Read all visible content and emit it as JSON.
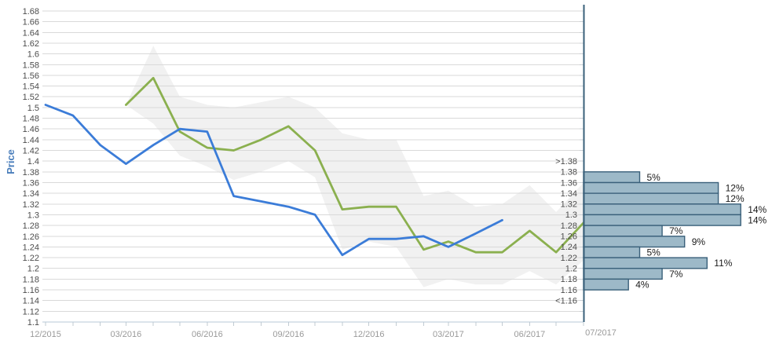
{
  "colors": {
    "history_line": "#3B7CD8",
    "forecast_line": "#8BB04F",
    "band": "#F1F1F1",
    "grid": "#D9D9D9",
    "axis_line": "#B7C9D7",
    "axis_tick": "#C2CBD2",
    "hist_bar_fill": "#9DB9C8",
    "hist_bar_border": "#3A607A",
    "hist_axis": "#3A607A",
    "hist_tick": "#C9CFD4",
    "y_label": "#4D4D4D",
    "x_label": "#9A9A9A",
    "bin_label": "#4D4D4D",
    "pct_label": "#1A1A1A",
    "price_label": "#4A7EBB"
  },
  "y_axis": {
    "title": "Price",
    "ticks": [
      "1.68",
      "1.66",
      "1.64",
      "1.62",
      "1.6",
      "1.58",
      "1.56",
      "1.54",
      "1.52",
      "1.5",
      "1.48",
      "1.46",
      "1.44",
      "1.42",
      "1.4",
      "1.38",
      "1.36",
      "1.34",
      "1.32",
      "1.3",
      "1.28",
      "1.26",
      "1.24",
      "1.22",
      "1.2",
      "1.18",
      "1.16",
      "1.14",
      "1.12",
      "1.1"
    ]
  },
  "x_axis": {
    "tick_labels": [
      "12/2015",
      "03/2016",
      "06/2016",
      "09/2016",
      "12/2016",
      "03/2017",
      "06/2017"
    ],
    "forecast_label": "07/2017"
  },
  "chart_data": {
    "type": "line",
    "title": "",
    "xlabel": "",
    "ylabel": "Price",
    "ylim": [
      1.1,
      1.68
    ],
    "grid": "horizontal",
    "series": [
      {
        "name": "history",
        "color": "#3B7CD8",
        "x": [
          "2015-12",
          "2016-01",
          "2016-02",
          "2016-03",
          "2016-04",
          "2016-05",
          "2016-06",
          "2016-07",
          "2016-08",
          "2016-09",
          "2016-10",
          "2016-11",
          "2016-12",
          "2017-01",
          "2017-02",
          "2017-03",
          "2017-04",
          "2017-05"
        ],
        "values": [
          1.505,
          1.485,
          1.43,
          1.395,
          1.43,
          1.46,
          1.455,
          1.335,
          1.325,
          1.315,
          1.3,
          1.225,
          1.255,
          1.255,
          1.26,
          1.24,
          1.265,
          1.29
        ]
      },
      {
        "name": "forecast",
        "color": "#8BB04F",
        "x": [
          "2016-03",
          "2016-04",
          "2016-05",
          "2016-06",
          "2016-07",
          "2016-08",
          "2016-09",
          "2016-10",
          "2016-11",
          "2016-12",
          "2017-01",
          "2017-02",
          "2017-03",
          "2017-04",
          "2017-05",
          "2017-06",
          "2017-07",
          "2017-08"
        ],
        "values": [
          1.505,
          1.555,
          1.455,
          1.425,
          1.42,
          1.44,
          1.465,
          1.42,
          1.31,
          1.315,
          1.315,
          1.235,
          1.25,
          1.23,
          1.23,
          1.27,
          1.23,
          1.285
        ]
      },
      {
        "name": "confidence_band",
        "color": "#F1F1F1",
        "x": [
          "2016-03",
          "2016-04",
          "2016-05",
          "2016-06",
          "2016-07",
          "2016-08",
          "2016-09",
          "2016-10",
          "2016-11",
          "2016-12",
          "2017-01",
          "2017-02",
          "2017-03",
          "2017-04",
          "2017-05",
          "2017-06",
          "2017-07",
          "2017-08"
        ],
        "upper": [
          1.505,
          1.615,
          1.52,
          1.505,
          1.5,
          1.51,
          1.52,
          1.5,
          1.452,
          1.44,
          1.44,
          1.335,
          1.345,
          1.315,
          1.32,
          1.355,
          1.305,
          1.36
        ],
        "lower": [
          1.505,
          1.47,
          1.41,
          1.39,
          1.365,
          1.38,
          1.4,
          1.37,
          1.235,
          1.25,
          1.24,
          1.165,
          1.18,
          1.17,
          1.17,
          1.195,
          1.17,
          1.215
        ]
      }
    ],
    "histogram": {
      "axis_date_label": "07/2017",
      "unit": "%",
      "edge_labels": [
        {
          "text": ">1.38",
          "value": 1.4
        },
        {
          "text": "1.38",
          "value": 1.38
        },
        {
          "text": "1.36",
          "value": 1.36
        },
        {
          "text": "1.34",
          "value": 1.34
        },
        {
          "text": "1.32",
          "value": 1.32
        },
        {
          "text": "1.3",
          "value": 1.3
        },
        {
          "text": "1.28",
          "value": 1.28
        },
        {
          "text": "1.26",
          "value": 1.26
        },
        {
          "text": "1.24",
          "value": 1.24
        },
        {
          "text": "1.22",
          "value": 1.22
        },
        {
          "text": "1.2",
          "value": 1.2
        },
        {
          "text": "1.18",
          "value": 1.18
        },
        {
          "text": "1.16",
          "value": 1.16
        },
        {
          "text": "<1.16",
          "value": 1.14
        }
      ],
      "bins": [
        {
          "range": "1.36-1.38",
          "from": 1.36,
          "to": 1.38,
          "pct": 5,
          "label": "5%"
        },
        {
          "range": "1.34-1.36",
          "from": 1.34,
          "to": 1.36,
          "pct": 12,
          "label": "12%"
        },
        {
          "range": "1.32-1.34",
          "from": 1.32,
          "to": 1.34,
          "pct": 12,
          "label": "12%"
        },
        {
          "range": "1.30-1.32",
          "from": 1.3,
          "to": 1.32,
          "pct": 14,
          "label": "14%"
        },
        {
          "range": "1.28-1.30",
          "from": 1.28,
          "to": 1.3,
          "pct": 14,
          "label": "14%"
        },
        {
          "range": "1.26-1.28",
          "from": 1.26,
          "to": 1.28,
          "pct": 7,
          "label": "7%"
        },
        {
          "range": "1.24-1.26",
          "from": 1.24,
          "to": 1.26,
          "pct": 9,
          "label": "9%"
        },
        {
          "range": "1.22-1.24",
          "from": 1.22,
          "to": 1.24,
          "pct": 5,
          "label": "5%"
        },
        {
          "range": "1.20-1.22",
          "from": 1.2,
          "to": 1.22,
          "pct": 11,
          "label": "11%"
        },
        {
          "range": "1.18-1.20",
          "from": 1.18,
          "to": 1.2,
          "pct": 7,
          "label": "7%"
        },
        {
          "range": "1.16-1.18",
          "from": 1.16,
          "to": 1.18,
          "pct": 4,
          "label": "4%"
        }
      ]
    }
  }
}
